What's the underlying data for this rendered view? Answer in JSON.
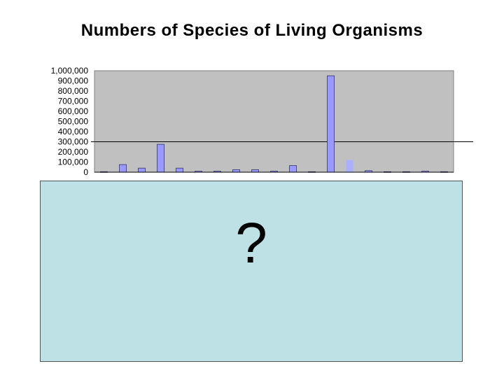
{
  "page": {
    "title": "Numbers of Species of Living Organisms",
    "cover_mark": "?"
  },
  "colors": {
    "plot_background": "#c0c0c0",
    "bar": "#9999ff",
    "bar_highlight": "#aab0ff",
    "cover_panel": "#bde1e4"
  },
  "chart_data": {
    "type": "bar",
    "title": "Numbers of Species of Living Organisms",
    "xlabel": "",
    "ylabel": "",
    "ylim": [
      0,
      1000000
    ],
    "yticks": [
      0,
      100000,
      200000,
      300000,
      400000,
      500000,
      600000,
      700000,
      800000,
      900000,
      1000000
    ],
    "ytick_labels": [
      "0",
      "100,000",
      "200,000",
      "300,000",
      "400,000",
      "500,000",
      "600,000",
      "700,000",
      "800,000",
      "900,000",
      "1,000,000"
    ],
    "reference_line": 300000,
    "grid": false,
    "legend": "none",
    "values": [
      5000,
      75000,
      40000,
      275000,
      40000,
      10000,
      10000,
      25000,
      25000,
      10000,
      65000,
      5000,
      950000,
      120000,
      15000,
      5000,
      5000,
      10000,
      5000
    ]
  }
}
